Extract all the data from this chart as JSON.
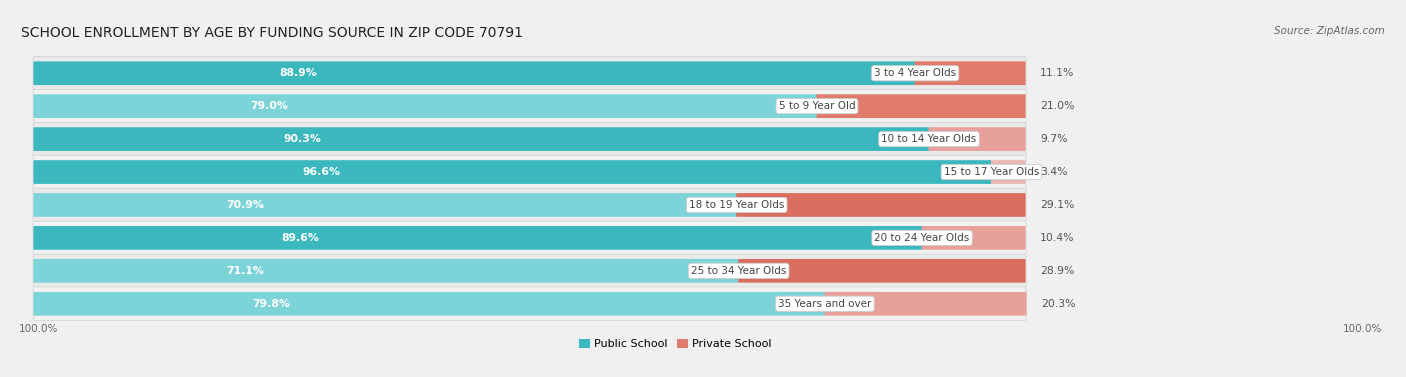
{
  "title": "SCHOOL ENROLLMENT BY AGE BY FUNDING SOURCE IN ZIP CODE 70791",
  "source": "Source: ZipAtlas.com",
  "categories": [
    "3 to 4 Year Olds",
    "5 to 9 Year Old",
    "10 to 14 Year Olds",
    "15 to 17 Year Olds",
    "18 to 19 Year Olds",
    "20 to 24 Year Olds",
    "25 to 34 Year Olds",
    "35 Years and over"
  ],
  "public_values": [
    88.9,
    79.0,
    90.3,
    96.6,
    70.9,
    89.6,
    71.1,
    79.8
  ],
  "private_values": [
    11.1,
    21.0,
    9.7,
    3.4,
    29.1,
    10.4,
    28.9,
    20.3
  ],
  "public_colors": [
    "#3ab8be",
    "#7dd4d8",
    "#3ab8be",
    "#3ab8be",
    "#7dd4d8",
    "#3ab8be",
    "#7dd4d8",
    "#7dd4d8"
  ],
  "private_colors": [
    "#e07a6a",
    "#e07a6a",
    "#e8a09a",
    "#e8b8b4",
    "#d96e5e",
    "#e8a09a",
    "#d96e5e",
    "#e8a09a"
  ],
  "row_bg_colors": [
    "#eaeaea",
    "#f2f2f2",
    "#eaeaea",
    "#f2f2f2",
    "#eaeaea",
    "#f2f2f2",
    "#eaeaea",
    "#f2f2f2"
  ],
  "total_width": 100,
  "title_fontsize": 10,
  "label_fontsize": 7.5,
  "value_fontsize": 7.8,
  "source_fontsize": 7.5,
  "legend_fontsize": 8,
  "bg_color": "#f0f0f0"
}
